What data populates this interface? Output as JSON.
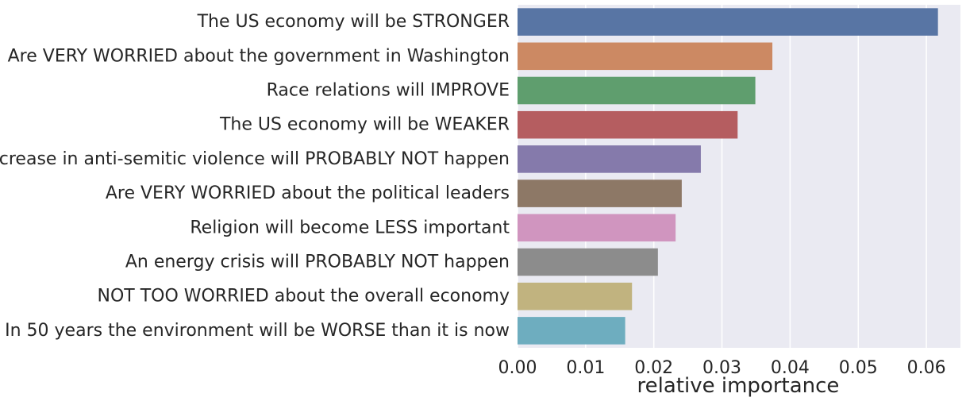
{
  "chart_data": {
    "type": "bar",
    "orientation": "horizontal",
    "title": "",
    "xlabel": "relative importance",
    "ylabel": "",
    "xlim": [
      0,
      0.065
    ],
    "xticks": [
      0.0,
      0.01,
      0.02,
      0.03,
      0.04,
      0.05,
      0.06
    ],
    "xtick_labels": [
      "0.00",
      "0.01",
      "0.02",
      "0.03",
      "0.04",
      "0.05",
      "0.06"
    ],
    "grid": true,
    "categories": [
      "The US economy will be STRONGER",
      "Are VERY WORRIED about the government in Washington",
      "Race relations will IMPROVE",
      "The US economy will be WEAKER",
      "An increase in anti-semitic violence will PROBABLY NOT happen",
      "Are VERY WORRIED about the political leaders",
      "Religion will become LESS important",
      "An energy crisis will PROBABLY NOT happen",
      "NOT TOO WORRIED about the overall economy",
      "In 50 years the environment will be WORSE than it is now"
    ],
    "values": [
      0.0617,
      0.0374,
      0.0349,
      0.0323,
      0.0269,
      0.0241,
      0.0232,
      0.0206,
      0.0168,
      0.0158
    ],
    "colors": [
      "#5875a4",
      "#cc8963",
      "#5f9e6e",
      "#b55d60",
      "#857aab",
      "#8d7866",
      "#d095bf",
      "#8c8c8c",
      "#c1b37f",
      "#6eadbf"
    ],
    "background_color": "#eaeaf2",
    "grid_color": "#ffffff"
  }
}
